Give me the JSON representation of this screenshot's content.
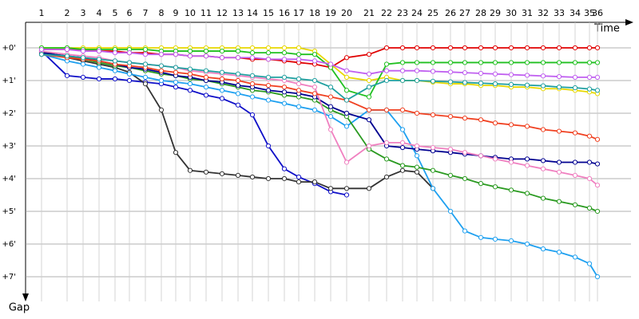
{
  "chart_data": {
    "type": "line",
    "xlabel": "Time",
    "ylabel": "Gap",
    "y_inverted": true,
    "grid": true,
    "xlim": [
      0,
      37.9
    ],
    "ylim": [
      -0.78,
      8.0
    ],
    "xticks": [
      {
        "value": 1.0,
        "label": "1"
      },
      {
        "value": 2.6,
        "label": "2"
      },
      {
        "value": 3.6,
        "label": "3"
      },
      {
        "value": 4.6,
        "label": "4"
      },
      {
        "value": 5.6,
        "label": "5"
      },
      {
        "value": 6.5,
        "label": "6"
      },
      {
        "value": 7.5,
        "label": "7"
      },
      {
        "value": 8.5,
        "label": "8"
      },
      {
        "value": 9.4,
        "label": "9"
      },
      {
        "value": 10.3,
        "label": "10"
      },
      {
        "value": 11.3,
        "label": "11"
      },
      {
        "value": 12.3,
        "label": "12"
      },
      {
        "value": 13.3,
        "label": "13"
      },
      {
        "value": 14.2,
        "label": "14"
      },
      {
        "value": 15.2,
        "label": "15"
      },
      {
        "value": 16.2,
        "label": "16"
      },
      {
        "value": 17.1,
        "label": "17"
      },
      {
        "value": 18.1,
        "label": "18"
      },
      {
        "value": 19.1,
        "label": "19"
      },
      {
        "value": 20.1,
        "label": "20"
      },
      {
        "value": 21.5,
        "label": "21"
      },
      {
        "value": 22.6,
        "label": "22"
      },
      {
        "value": 23.6,
        "label": "23"
      },
      {
        "value": 24.5,
        "label": "24"
      },
      {
        "value": 25.5,
        "label": "25"
      },
      {
        "value": 26.6,
        "label": "26"
      },
      {
        "value": 27.5,
        "label": "27"
      },
      {
        "value": 28.5,
        "label": "28"
      },
      {
        "value": 29.4,
        "label": "29"
      },
      {
        "value": 30.4,
        "label": "30"
      },
      {
        "value": 31.4,
        "label": "31"
      },
      {
        "value": 32.4,
        "label": "32"
      },
      {
        "value": 33.4,
        "label": "33"
      },
      {
        "value": 34.4,
        "label": "34"
      },
      {
        "value": 35.3,
        "label": "35"
      },
      {
        "value": 35.8,
        "label": "36"
      }
    ],
    "yticks": [
      {
        "value": 0,
        "label": "+0'"
      },
      {
        "value": 1,
        "label": "+1'"
      },
      {
        "value": 2,
        "label": "+2'"
      },
      {
        "value": 3,
        "label": "+3'"
      },
      {
        "value": 4,
        "label": "+4'"
      },
      {
        "value": 5,
        "label": "+5'"
      },
      {
        "value": 6,
        "label": "+6'"
      },
      {
        "value": 7,
        "label": "+7'"
      }
    ],
    "x": [
      1.0,
      2.6,
      3.6,
      4.6,
      5.6,
      6.5,
      7.5,
      8.5,
      9.4,
      10.3,
      11.3,
      12.3,
      13.3,
      14.2,
      15.2,
      16.2,
      17.1,
      18.1,
      19.1,
      20.1,
      21.5,
      22.6,
      23.6,
      24.5,
      25.5,
      26.6,
      27.5,
      28.5,
      29.4,
      30.4,
      31.4,
      32.4,
      33.4,
      34.4,
      35.3,
      35.8
    ],
    "series": [
      {
        "color": "#e00000",
        "values": [
          0.05,
          0.05,
          0.05,
          0.1,
          0.1,
          0.15,
          0.15,
          0.2,
          0.2,
          0.25,
          0.25,
          0.3,
          0.3,
          0.35,
          0.35,
          0.4,
          0.45,
          0.5,
          0.6,
          0.3,
          0.2,
          0,
          0,
          0,
          0,
          0,
          0,
          0,
          0,
          0,
          0,
          0,
          0,
          0,
          0,
          0
        ]
      },
      {
        "color": "#e8d800",
        "values": [
          0,
          0,
          0,
          0,
          0,
          0,
          0,
          0,
          0,
          0,
          0,
          0,
          0,
          0,
          0,
          0,
          0,
          0.1,
          0.5,
          0.9,
          1.0,
          0.9,
          1.0,
          1.0,
          1.05,
          1.1,
          1.1,
          1.15,
          1.15,
          1.2,
          1.2,
          1.25,
          1.25,
          1.3,
          1.35,
          1.4
        ]
      },
      {
        "color": "#1010c8",
        "values": [
          0.1,
          0.85,
          0.9,
          0.95,
          0.95,
          1.0,
          1.05,
          1.1,
          1.2,
          1.3,
          1.45,
          1.55,
          1.75,
          2.05,
          3.0,
          3.7,
          3.95,
          4.15,
          4.4,
          4.5,
          null,
          null,
          null,
          null,
          null,
          null,
          null,
          null,
          null,
          null,
          null,
          null,
          null,
          null,
          null,
          null
        ]
      },
      {
        "color": "#333333",
        "values": [
          0.1,
          0.3,
          0.4,
          0.5,
          0.6,
          0.75,
          1.1,
          1.9,
          3.2,
          3.75,
          3.8,
          3.85,
          3.9,
          3.95,
          4.0,
          4.0,
          4.1,
          4.1,
          4.3,
          4.3,
          4.3,
          3.95,
          3.75,
          3.8,
          4.3,
          null,
          null,
          null,
          null,
          null,
          null,
          null,
          null,
          null,
          null,
          null
        ]
      },
      {
        "color": "#1ea0f0",
        "values": [
          0.2,
          0.4,
          0.5,
          0.6,
          0.7,
          0.8,
          0.9,
          1.0,
          1.05,
          1.1,
          1.2,
          1.3,
          1.4,
          1.5,
          1.6,
          1.7,
          1.8,
          1.9,
          2.1,
          2.4,
          1.9,
          1.9,
          2.5,
          3.3,
          4.3,
          5.0,
          5.6,
          5.8,
          5.85,
          5.9,
          6.0,
          6.15,
          6.25,
          6.4,
          6.6,
          7.0
        ]
      },
      {
        "color": "#2a9a20",
        "values": [
          0.15,
          0.25,
          0.35,
          0.45,
          0.55,
          0.6,
          0.7,
          0.8,
          0.85,
          0.95,
          1.0,
          1.1,
          1.2,
          1.3,
          1.35,
          1.45,
          1.5,
          1.6,
          1.9,
          2.1,
          3.1,
          3.4,
          3.6,
          3.65,
          3.75,
          3.9,
          4.0,
          4.15,
          4.25,
          4.35,
          4.45,
          4.6,
          4.7,
          4.8,
          4.9,
          5.0
        ]
      },
      {
        "color": "#000090",
        "values": [
          0.15,
          0.25,
          0.3,
          0.4,
          0.5,
          0.6,
          0.65,
          0.75,
          0.85,
          0.9,
          1.0,
          1.05,
          1.15,
          1.2,
          1.3,
          1.35,
          1.4,
          1.5,
          1.8,
          2.0,
          2.2,
          3.0,
          3.05,
          3.1,
          3.15,
          3.2,
          3.25,
          3.3,
          3.35,
          3.4,
          3.4,
          3.45,
          3.5,
          3.5,
          3.5,
          3.55
        ]
      },
      {
        "color": "#f080c0",
        "values": [
          0.1,
          0.2,
          0.25,
          0.3,
          0.4,
          0.45,
          0.5,
          0.55,
          0.6,
          0.7,
          0.75,
          0.8,
          0.85,
          0.9,
          0.95,
          1.0,
          1.1,
          1.2,
          2.5,
          3.5,
          3.0,
          2.9,
          2.9,
          3.0,
          3.05,
          3.1,
          3.2,
          3.3,
          3.4,
          3.5,
          3.6,
          3.7,
          3.8,
          3.9,
          4.0,
          4.2
        ]
      },
      {
        "color": "#20c020",
        "values": [
          0,
          0,
          0.05,
          0.05,
          0.05,
          0.05,
          0.05,
          0.1,
          0.1,
          0.1,
          0.1,
          0.1,
          0.1,
          0.15,
          0.15,
          0.15,
          0.2,
          0.2,
          0.6,
          1.3,
          1.5,
          0.5,
          0.45,
          0.45,
          0.45,
          0.45,
          0.45,
          0.45,
          0.45,
          0.45,
          0.45,
          0.45,
          0.45,
          0.45,
          0.45,
          0.45
        ]
      },
      {
        "color": "#c060f0",
        "values": [
          0.05,
          0.05,
          0.1,
          0.1,
          0.15,
          0.15,
          0.2,
          0.2,
          0.2,
          0.25,
          0.25,
          0.3,
          0.3,
          0.3,
          0.35,
          0.35,
          0.35,
          0.4,
          0.5,
          0.7,
          0.8,
          0.7,
          0.7,
          0.7,
          0.72,
          0.74,
          0.76,
          0.78,
          0.8,
          0.82,
          0.84,
          0.86,
          0.88,
          0.9,
          0.9,
          0.9
        ]
      },
      {
        "color": "#f04020",
        "values": [
          0.2,
          0.3,
          0.35,
          0.4,
          0.5,
          0.55,
          0.6,
          0.7,
          0.75,
          0.8,
          0.9,
          0.95,
          1.0,
          1.1,
          1.15,
          1.2,
          1.3,
          1.4,
          1.5,
          1.6,
          1.9,
          1.9,
          1.9,
          2.0,
          2.05,
          2.1,
          2.15,
          2.2,
          2.3,
          2.35,
          2.4,
          2.5,
          2.55,
          2.6,
          2.7,
          2.8
        ]
      },
      {
        "color": "#20a0a0",
        "values": [
          0.2,
          0.25,
          0.3,
          0.35,
          0.4,
          0.45,
          0.5,
          0.55,
          0.6,
          0.65,
          0.7,
          0.75,
          0.8,
          0.85,
          0.9,
          0.9,
          0.95,
          1.0,
          1.2,
          1.6,
          1.2,
          1.0,
          1.0,
          1.0,
          1.02,
          1.04,
          1.06,
          1.08,
          1.1,
          1.12,
          1.14,
          1.16,
          1.2,
          1.22,
          1.26,
          1.3
        ]
      }
    ]
  }
}
